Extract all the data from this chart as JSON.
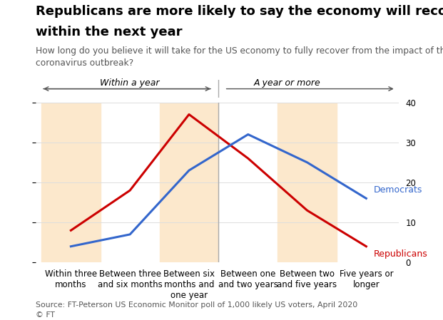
{
  "title_line1": "Republicans are more likely to say the economy will recover",
  "title_line2": "within the next year",
  "subtitle": "How long do you believe it will take for the US economy to fully recover from the impact of the\ncoronavirus outbreak?",
  "source": "Source: FT-Peterson US Economic Monitor poll of 1,000 likely US voters, April 2020\n© FT",
  "categories": [
    "Within three\nmonths",
    "Between three\nand six months",
    "Between six\nmonths and\none year",
    "Between one\nand two years",
    "Between two\nand five years",
    "Five years or\nlonger"
  ],
  "republicans": [
    8,
    18,
    37,
    26,
    13,
    4
  ],
  "democrats": [
    4,
    7,
    23,
    32,
    25,
    16
  ],
  "rep_color": "#cc0000",
  "dem_color": "#3366cc",
  "ylim": [
    0,
    40
  ],
  "yticks": [
    0,
    10,
    20,
    30,
    40
  ],
  "shaded_bands": [
    0,
    2,
    4
  ],
  "within_year_label": "Within a year",
  "year_or_more_label": "A year or more",
  "background_color": "#ffffff",
  "band_color": "#fce8cc",
  "arrow_color": "#555555",
  "divider_color": "#aaaaaa",
  "grid_color": "#dddddd",
  "title_fontsize": 13,
  "subtitle_fontsize": 8.8,
  "source_fontsize": 7.8,
  "tick_fontsize": 8.5,
  "label_fontsize": 9,
  "arrow_label_fontsize": 9
}
